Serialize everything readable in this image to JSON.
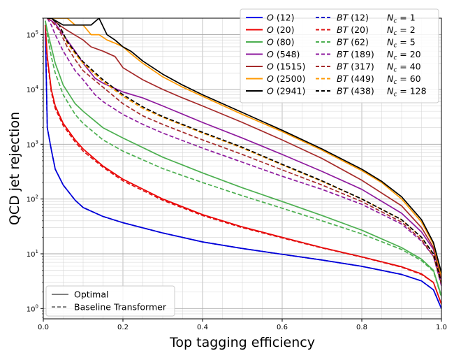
{
  "chart_data": {
    "type": "line",
    "xlabel": "Top tagging efficiency",
    "ylabel": "QCD jet rejection",
    "xlim": [
      0,
      1
    ],
    "ylim": [
      0.65,
      200000
    ],
    "y_scale": "log",
    "grid": "on (major and minor)",
    "x_ticks": [
      {
        "value": 0.0,
        "label": "0.0"
      },
      {
        "value": 0.2,
        "label": "0.2"
      },
      {
        "value": 0.4,
        "label": "0.4"
      },
      {
        "value": 0.6,
        "label": "0.6"
      },
      {
        "value": 0.8,
        "label": "0.8"
      },
      {
        "value": 1.0,
        "label": "1.0"
      }
    ],
    "y_ticks": [
      {
        "value": 1,
        "base": "10",
        "exp": "0"
      },
      {
        "value": 10,
        "base": "10",
        "exp": "1"
      },
      {
        "value": 100,
        "base": "10",
        "exp": "2"
      },
      {
        "value": 1000,
        "base": "10",
        "exp": "3"
      },
      {
        "value": 10000,
        "base": "10",
        "exp": "4"
      },
      {
        "value": 100000,
        "base": "10",
        "exp": "5"
      }
    ],
    "legend": {
      "placement": "top-right",
      "rows": [
        {
          "o_label": "O",
          "o_count": " (12)",
          "bt_label": "BT",
          "bt_count": " (12)",
          "nc_label": "N",
          "nc_sub": "c",
          "nc_value": " = 1"
        },
        {
          "o_label": "O",
          "o_count": " (20)",
          "bt_label": "BT",
          "bt_count": " (20)",
          "nc_label": "N",
          "nc_sub": "c",
          "nc_value": " = 2"
        },
        {
          "o_label": "O",
          "o_count": " (80)",
          "bt_label": "BT",
          "bt_count": " (62)",
          "nc_label": "N",
          "nc_sub": "c",
          "nc_value": " = 5"
        },
        {
          "o_label": "O",
          "o_count": " (548)",
          "bt_label": "BT",
          "bt_count": " (189)",
          "nc_label": "N",
          "nc_sub": "c",
          "nc_value": " = 20"
        },
        {
          "o_label": "O",
          "o_count": " (1515)",
          "bt_label": "BT",
          "bt_count": " (317)",
          "nc_label": "N",
          "nc_sub": "c",
          "nc_value": " = 40"
        },
        {
          "o_label": "O",
          "o_count": " (2500)",
          "bt_label": "BT",
          "bt_count": " (449)",
          "nc_label": "N",
          "nc_sub": "c",
          "nc_value": " = 60"
        },
        {
          "o_label": "O",
          "o_count": " (2941)",
          "bt_label": "BT",
          "bt_count": " (438)",
          "nc_label": "N",
          "nc_sub": "c",
          "nc_value": " = 128"
        }
      ]
    },
    "style_legend": {
      "placement": "bottom-left",
      "entries": [
        {
          "label": "Optimal",
          "dash": "solid"
        },
        {
          "label": "Baseline Transformer",
          "dash": "dashed"
        }
      ]
    },
    "series": [
      {
        "color": "#0000ee",
        "dash": "solid",
        "x": [
          0.005,
          0.01,
          0.02,
          0.03,
          0.05,
          0.08,
          0.1,
          0.15,
          0.2,
          0.3,
          0.4,
          0.5,
          0.6,
          0.7,
          0.8,
          0.9,
          0.95,
          0.98,
          1.0
        ],
        "y": [
          150000,
          2000,
          800,
          350,
          180,
          95,
          70,
          48,
          37,
          24,
          16.5,
          12.5,
          9.8,
          7.7,
          5.9,
          4.2,
          3.2,
          2.2,
          1.0
        ]
      },
      {
        "color": "#0000cc",
        "dash": "dashed",
        "x": [
          0.005,
          0.01,
          0.02,
          0.03,
          0.05,
          0.08,
          0.1,
          0.15,
          0.2,
          0.3,
          0.4,
          0.5,
          0.6,
          0.7,
          0.8,
          0.9,
          0.95,
          0.98,
          1.0
        ],
        "y": [
          150000,
          2000,
          800,
          350,
          180,
          95,
          70,
          48,
          37,
          24,
          16.5,
          12.5,
          9.8,
          7.7,
          5.9,
          4.2,
          3.2,
          2.2,
          1.0
        ]
      },
      {
        "color": "#ee0000",
        "dash": "solid",
        "x": [
          0.005,
          0.01,
          0.02,
          0.03,
          0.05,
          0.08,
          0.1,
          0.15,
          0.2,
          0.3,
          0.4,
          0.5,
          0.6,
          0.7,
          0.8,
          0.9,
          0.95,
          0.98,
          1.0
        ],
        "y": [
          150000,
          40000,
          10000,
          5000,
          2400,
          1200,
          820,
          400,
          230,
          100,
          52,
          31,
          20,
          13,
          8.8,
          5.8,
          4.3,
          3.0,
          1.2
        ]
      },
      {
        "color": "#dd1111",
        "dash": "dashed",
        "x": [
          0.005,
          0.01,
          0.02,
          0.03,
          0.05,
          0.08,
          0.1,
          0.15,
          0.2,
          0.3,
          0.4,
          0.5,
          0.6,
          0.7,
          0.8,
          0.9,
          0.95,
          0.98,
          1.0
        ],
        "y": [
          150000,
          35000,
          9000,
          4500,
          2200,
          1100,
          750,
          380,
          215,
          95,
          50,
          30,
          19.5,
          12.8,
          8.7,
          5.7,
          4.2,
          3.0,
          1.2
        ]
      },
      {
        "color": "#4caf50",
        "dash": "solid",
        "x": [
          0.005,
          0.01,
          0.02,
          0.03,
          0.05,
          0.08,
          0.1,
          0.15,
          0.2,
          0.3,
          0.4,
          0.5,
          0.6,
          0.7,
          0.8,
          0.9,
          0.95,
          0.98,
          1.0
        ],
        "y": [
          180000,
          120000,
          60000,
          30000,
          12000,
          5500,
          4000,
          2000,
          1300,
          580,
          300,
          160,
          90,
          50,
          27,
          13,
          8.0,
          5.0,
          1.7
        ]
      },
      {
        "color": "#4caf50",
        "dash": "dashed",
        "x": [
          0.005,
          0.01,
          0.02,
          0.03,
          0.05,
          0.08,
          0.1,
          0.15,
          0.2,
          0.3,
          0.4,
          0.5,
          0.6,
          0.7,
          0.8,
          0.9,
          0.95,
          0.98,
          1.0
        ],
        "y": [
          180000,
          100000,
          40000,
          20000,
          8000,
          3500,
          2400,
          1200,
          750,
          360,
          200,
          115,
          68,
          40,
          23,
          12,
          7.5,
          4.8,
          1.6
        ]
      },
      {
        "color": "#8e1a9e",
        "dash": "solid",
        "x": [
          0.01,
          0.02,
          0.03,
          0.05,
          0.08,
          0.1,
          0.13,
          0.15,
          0.2,
          0.25,
          0.3,
          0.4,
          0.5,
          0.6,
          0.7,
          0.8,
          0.9,
          0.95,
          0.98,
          1.0
        ],
        "y": [
          200000,
          180000,
          160000,
          100000,
          50000,
          30000,
          16000,
          13000,
          9000,
          7000,
          5000,
          2500,
          1300,
          650,
          320,
          150,
          55,
          25,
          12,
          3.0
        ]
      },
      {
        "color": "#8e1a9e",
        "dash": "dashed",
        "x": [
          0.01,
          0.02,
          0.03,
          0.05,
          0.08,
          0.1,
          0.13,
          0.15,
          0.2,
          0.25,
          0.3,
          0.4,
          0.5,
          0.6,
          0.7,
          0.8,
          0.9,
          0.95,
          0.98,
          1.0
        ],
        "y": [
          200000,
          150000,
          100000,
          50000,
          22000,
          15000,
          8000,
          6000,
          3500,
          2300,
          1600,
          850,
          470,
          260,
          150,
          80,
          35,
          17,
          9.0,
          2.6
        ]
      },
      {
        "color": "#a52a2a",
        "dash": "solid",
        "x": [
          0.01,
          0.02,
          0.04,
          0.06,
          0.1,
          0.12,
          0.15,
          0.18,
          0.2,
          0.25,
          0.3,
          0.35,
          0.4,
          0.5,
          0.6,
          0.7,
          0.8,
          0.9,
          0.95,
          0.98,
          1.0
        ],
        "y": [
          200000,
          200000,
          150000,
          120000,
          80000,
          60000,
          50000,
          40000,
          25000,
          15000,
          10000,
          7000,
          5000,
          2500,
          1200,
          550,
          220,
          75,
          30,
          13,
          3.5
        ]
      },
      {
        "color": "#a52a2a",
        "dash": "dashed",
        "x": [
          0.01,
          0.02,
          0.04,
          0.06,
          0.08,
          0.1,
          0.15,
          0.2,
          0.25,
          0.3,
          0.4,
          0.5,
          0.6,
          0.7,
          0.8,
          0.9,
          0.95,
          0.98,
          1.0
        ],
        "y": [
          200000,
          180000,
          120000,
          60000,
          35000,
          22000,
          11000,
          5500,
          3300,
          2300,
          1200,
          650,
          340,
          180,
          90,
          38,
          18,
          9.0,
          2.8
        ]
      },
      {
        "color": "#ff9900",
        "dash": "solid",
        "x": [
          0.01,
          0.02,
          0.06,
          0.08,
          0.1,
          0.12,
          0.14,
          0.16,
          0.18,
          0.2,
          0.22,
          0.25,
          0.3,
          0.35,
          0.4,
          0.5,
          0.6,
          0.7,
          0.8,
          0.85,
          0.9,
          0.95,
          0.98,
          1.0
        ],
        "y": [
          200000,
          200000,
          200000,
          150000,
          150000,
          100000,
          100000,
          80000,
          70000,
          60000,
          45000,
          30000,
          17000,
          11000,
          7500,
          3500,
          1700,
          780,
          330,
          200,
          100,
          38,
          15,
          4.0
        ]
      },
      {
        "color": "#ff9900",
        "dash": "dashed",
        "x": [
          0.01,
          0.02,
          0.04,
          0.06,
          0.08,
          0.1,
          0.15,
          0.2,
          0.25,
          0.3,
          0.4,
          0.5,
          0.6,
          0.7,
          0.8,
          0.9,
          0.95,
          0.98,
          1.0
        ],
        "y": [
          200000,
          200000,
          150000,
          70000,
          45000,
          30000,
          14000,
          7500,
          4500,
          3100,
          1600,
          850,
          420,
          210,
          100,
          42,
          20,
          10,
          3.0
        ]
      },
      {
        "color": "#000000",
        "dash": "solid",
        "x": [
          0.01,
          0.02,
          0.05,
          0.08,
          0.1,
          0.12,
          0.14,
          0.16,
          0.18,
          0.2,
          0.22,
          0.25,
          0.3,
          0.35,
          0.4,
          0.5,
          0.6,
          0.7,
          0.8,
          0.85,
          0.9,
          0.95,
          0.98,
          1.0
        ],
        "y": [
          200000,
          200000,
          150000,
          150000,
          150000,
          150000,
          200000,
          100000,
          80000,
          60000,
          50000,
          33000,
          19000,
          12000,
          8000,
          3800,
          1800,
          820,
          350,
          210,
          110,
          42,
          16,
          4.5
        ]
      },
      {
        "color": "#000000",
        "dash": "dashed",
        "x": [
          0.01,
          0.02,
          0.04,
          0.06,
          0.08,
          0.1,
          0.15,
          0.2,
          0.25,
          0.3,
          0.4,
          0.5,
          0.6,
          0.7,
          0.8,
          0.9,
          0.95,
          0.98,
          1.0
        ],
        "y": [
          200000,
          200000,
          150000,
          75000,
          48000,
          32000,
          15000,
          8000,
          4800,
          3200,
          1650,
          880,
          430,
          215,
          100,
          42,
          20,
          10,
          3.0
        ]
      }
    ]
  }
}
